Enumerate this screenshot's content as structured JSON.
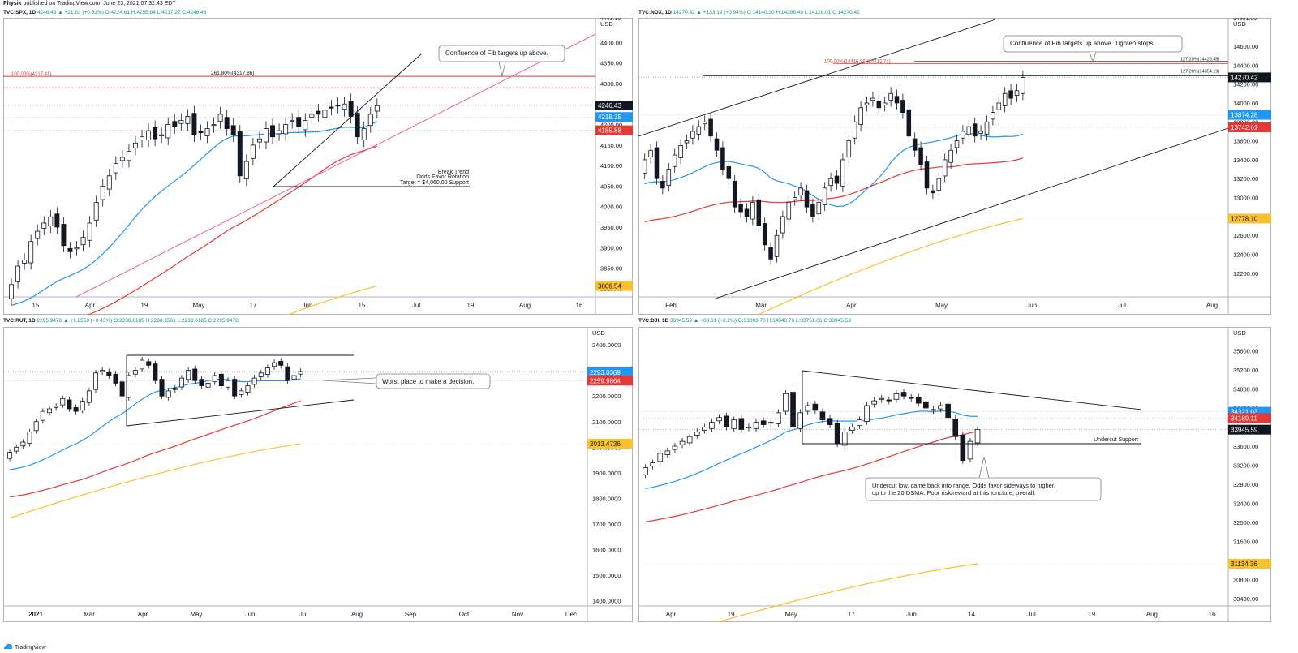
{
  "header": {
    "publisher": "Physik",
    "published": "published on TradingView.com, June 23, 2021 07:32:43 EDT"
  },
  "footer": {
    "brand": "TradingView"
  },
  "colors": {
    "up": "#ffffff",
    "down": "#131722",
    "sma20": "#2196f3",
    "sma50": "#e53935",
    "sma200": "#fbc02d",
    "fib": "#e53935"
  },
  "panels": [
    {
      "id": "spx",
      "title": {
        "symbol": "TVC:SPX, 1D",
        "stats": "4246.43 ▲ +21.63 (+0.51%) O:4224.61 H:4255.84 L:4217.27 C:4246.43"
      },
      "chart_data": {
        "type": "candlestick",
        "ylim": [
          3780,
          4460
        ],
        "yticks": [
          3800,
          3850,
          3900,
          3950,
          4000,
          4050,
          4100,
          4150,
          4200,
          4250,
          4300,
          4350,
          4400
        ],
        "ytop_label": "4441.10",
        "currency": "USD",
        "xlabels": [
          "15",
          "Apr",
          "19",
          "May",
          "17",
          "Jun",
          "15",
          "Jul",
          "19",
          "Aug",
          "16"
        ],
        "price_tags": [
          {
            "label": "4246.43",
            "value": 4246.43,
            "color": "#131722"
          },
          {
            "label": "4218.35",
            "value": 4218.35,
            "color": "#2196f3"
          },
          {
            "label": "4185.88",
            "value": 4185.88,
            "color": "#e53935"
          },
          {
            "label": "3806.54",
            "value": 3806.54,
            "color": "#fbc02d"
          }
        ],
        "fib_labels": [
          "100.00%(4317.41)",
          "261.80%(4317.86)"
        ],
        "annotations": [
          "Confluence of Fib targets up above.",
          "Break Trend",
          "Odds Favor Rotation",
          "Target = $4,060.00 Support"
        ],
        "closes": [
          3810,
          3855,
          3870,
          3915,
          3940,
          3960,
          3975,
          3950,
          3905,
          3890,
          3900,
          3925,
          3960,
          4010,
          4050,
          4075,
          4105,
          4120,
          4135,
          4155,
          4170,
          4185,
          4165,
          4175,
          4200,
          4195,
          4210,
          4220,
          4175,
          4180,
          4190,
          4200,
          4225,
          4190,
          4175,
          4075,
          4110,
          4150,
          4165,
          4190,
          4170,
          4185,
          4200,
          4210,
          4195,
          4210,
          4225,
          4225,
          4235,
          4240,
          4245,
          4250,
          4220,
          4170,
          4190,
          4225,
          4246
        ]
      }
    },
    {
      "id": "ndx",
      "title": {
        "symbol": "TVC:NDX, 1D",
        "stats": "14270.42 ▲ +133.19 (+0.94%) O:14140.30 H:14288.49 L:14128.01 C:14270.42"
      },
      "chart_data": {
        "type": "candlestick",
        "ylim": [
          11950,
          14900
        ],
        "yticks": [
          12200,
          12400,
          12600,
          12800,
          13000,
          13200,
          13400,
          13600,
          13800,
          14000,
          14200,
          14400,
          14600
        ],
        "ytop_label": "14801.00",
        "currency": "USD",
        "xlabels": [
          "Feb",
          "Mar",
          "Apr",
          "May",
          "Jun",
          "Jul",
          "Aug"
        ],
        "price_tags": [
          {
            "label": "14270.42",
            "value": 14270.42,
            "color": "#131722"
          },
          {
            "label": "13874.28",
            "value": 13874.28,
            "color": "#2196f3"
          },
          {
            "label": "13742.61",
            "value": 13742.61,
            "color": "#e53935"
          },
          {
            "label": "12778.10",
            "value": 12778.1,
            "color": "#fbc02d"
          }
        ],
        "fib_labels": [
          "100.00%(14416.88)",
          "100.00%(14412.74)",
          "127.20%(14425.45)",
          "127.20%(14354.19)"
        ],
        "annotations": [
          "Confluence of Fib targets up above. Tighten stops."
        ],
        "closes": [
          13400,
          13500,
          13200,
          13100,
          13300,
          13450,
          13550,
          13600,
          13700,
          13750,
          13800,
          13650,
          13500,
          13300,
          13200,
          12900,
          12850,
          12800,
          12950,
          12700,
          12500,
          12350,
          12600,
          12800,
          12950,
          13000,
          13100,
          12900,
          12800,
          12950,
          13100,
          13200,
          13150,
          13400,
          13600,
          13800,
          13950,
          14000,
          14050,
          13950,
          14000,
          14100,
          14000,
          13900,
          13650,
          13500,
          13350,
          13100,
          13050,
          13200,
          13400,
          13500,
          13600,
          13700,
          13750,
          13650,
          13700,
          13800,
          13900,
          14000,
          14100,
          14050,
          14130,
          14270
        ]
      }
    },
    {
      "id": "rut",
      "title": {
        "symbol": "TVC:RUT, 1D",
        "stats": "2295.9478 ▲ +9.8550 (+0.43%) O:2238.6185 H:2298.3561 L:2238.6185 C:2295.9478"
      },
      "chart_data": {
        "type": "candlestick",
        "ylim": [
          1380,
          2470
        ],
        "yticks": [
          1400,
          1500,
          1600,
          1700,
          1800,
          1900,
          2000,
          2100,
          2200,
          2300,
          2400
        ],
        "ytick_decimals": 4,
        "currency": "USD",
        "xlabels": [
          "2021",
          "Mar",
          "Apr",
          "May",
          "Jun",
          "Jul",
          "Aug",
          "Sep",
          "Oct",
          "Nov",
          "Dec"
        ],
        "price_tags": [
          {
            "label": "2295.9478",
            "value": 2295.9478,
            "color": "#131722"
          },
          {
            "label": "2293.0369",
            "value": 2293.0369,
            "color": "#2196f3"
          },
          {
            "label": "2259.9864",
            "value": 2259.9864,
            "color": "#e53935"
          },
          {
            "label": "2013.4736",
            "value": 2013.4736,
            "color": "#fbc02d"
          }
        ],
        "annotations": [
          "Worst place to make a decision."
        ],
        "closes": [
          1980,
          2000,
          2020,
          2060,
          2100,
          2140,
          2150,
          2160,
          2190,
          2150,
          2140,
          2180,
          2220,
          2290,
          2300,
          2280,
          2250,
          2200,
          2280,
          2300,
          2340,
          2320,
          2260,
          2200,
          2220,
          2230,
          2270,
          2300,
          2260,
          2240,
          2250,
          2280,
          2240,
          2260,
          2200,
          2220,
          2240,
          2270,
          2290,
          2310,
          2330,
          2320,
          2260,
          2280,
          2296
        ]
      }
    },
    {
      "id": "dji",
      "title": {
        "symbol": "TVC:DJI, 1D",
        "stats": "33945.59 ▲ +68.61 (+0.2%) O:33893.70 H:34040.70 L:33751.06 C:33945.59"
      },
      "chart_data": {
        "type": "candlestick",
        "ylim": [
          30250,
          36100
        ],
        "yticks": [
          30400,
          30800,
          31200,
          31600,
          32000,
          32400,
          32800,
          33200,
          33600,
          34000,
          34400,
          34800,
          35200,
          35600
        ],
        "currency": "USD",
        "xlabels": [
          "Apr",
          "19",
          "May",
          "17",
          "Jun",
          "14",
          "Jul",
          "19",
          "Aug",
          "16"
        ],
        "price_tags": [
          {
            "label": "34321.03",
            "value": 34321.03,
            "color": "#2196f3"
          },
          {
            "label": "34189.11",
            "value": 34189.11,
            "color": "#e53935"
          },
          {
            "label": "33945.59",
            "value": 33945.59,
            "color": "#131722"
          },
          {
            "label": "31134.36",
            "value": 31134.36,
            "color": "#fbc02d"
          }
        ],
        "support_label": "Undercut Support",
        "annotations": [
          "Undercut low, came back into range. Odds favor sideways to higher,",
          "up to the 20 DSMA. Poor risk/reward at this juncture, overall."
        ],
        "closes": [
          33150,
          33250,
          33450,
          33500,
          33600,
          33700,
          33800,
          33900,
          34000,
          34100,
          34200,
          34000,
          34150,
          33950,
          34000,
          34100,
          34050,
          34100,
          34300,
          34700,
          34000,
          34300,
          34450,
          34350,
          34150,
          34050,
          33650,
          33900,
          34000,
          34150,
          34450,
          34550,
          34600,
          34550,
          34700,
          34650,
          34600,
          34500,
          34400,
          34350,
          34450,
          34200,
          33800,
          33300,
          33700,
          33950
        ]
      }
    }
  ]
}
